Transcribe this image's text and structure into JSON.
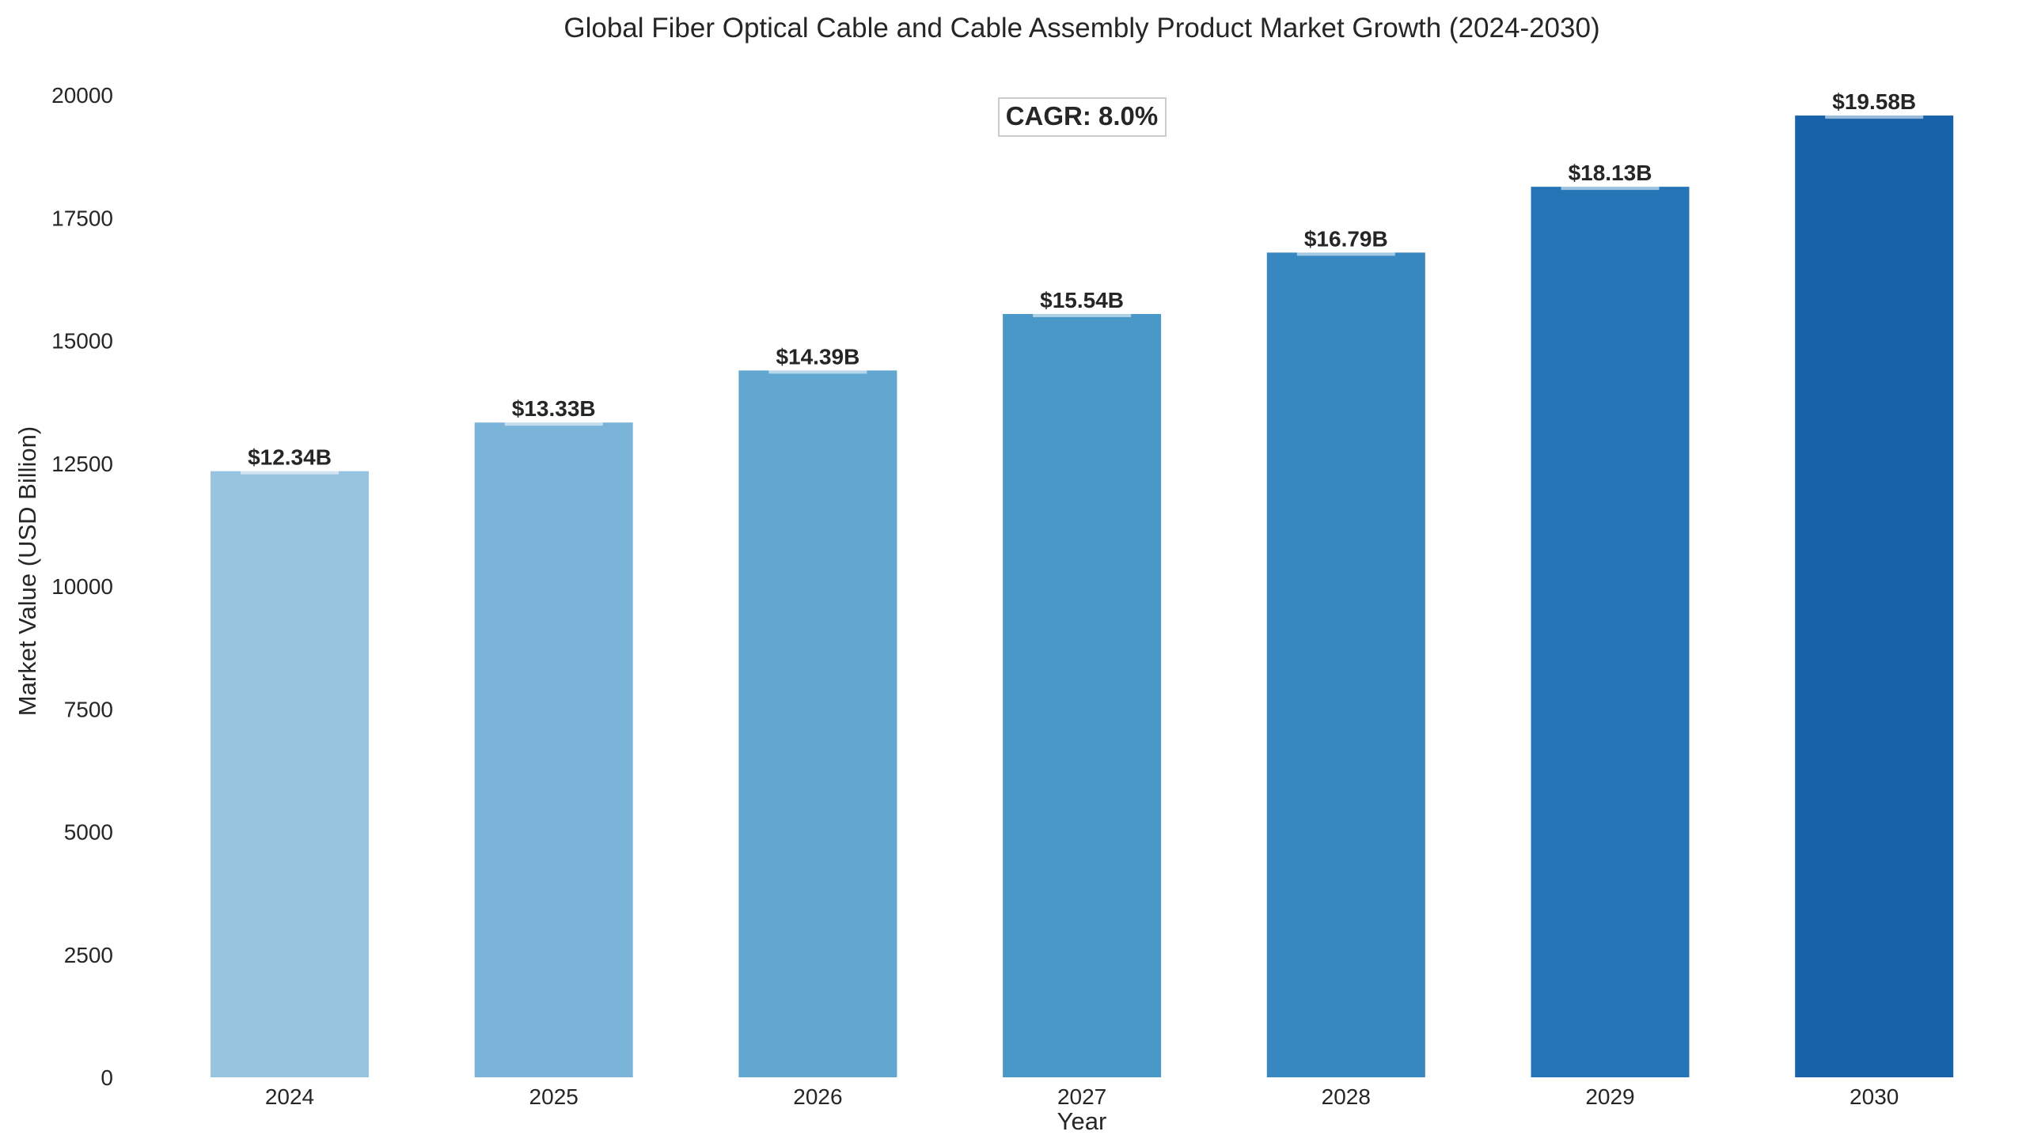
{
  "chart_data": {
    "type": "bar",
    "title": "Global Fiber Optical Cable and Cable Assembly Product Market Growth (2024-2030)",
    "xlabel": "Year",
    "ylabel": "Market Value (USD Billion)",
    "categories": [
      "2024",
      "2025",
      "2026",
      "2027",
      "2028",
      "2029",
      "2030"
    ],
    "values": [
      12340,
      13330,
      14390,
      15540,
      16790,
      18130,
      19580
    ],
    "data_labels": [
      "$12.34B",
      "$13.33B",
      "$14.39B",
      "$15.54B",
      "$16.79B",
      "$18.13B",
      "$19.58B"
    ],
    "colors": [
      "#98c4e0",
      "#7ab4d9",
      "#62a7d0",
      "#4a98c8",
      "#3787c0",
      "#2474b6",
      "#1862aa"
    ],
    "ylim": [
      0,
      20000
    ],
    "yticks": [
      0,
      2500,
      5000,
      7500,
      10000,
      12500,
      15000,
      17500,
      20000
    ],
    "annotation": "CAGR: 8.0%",
    "grid": false,
    "legend": "none"
  }
}
